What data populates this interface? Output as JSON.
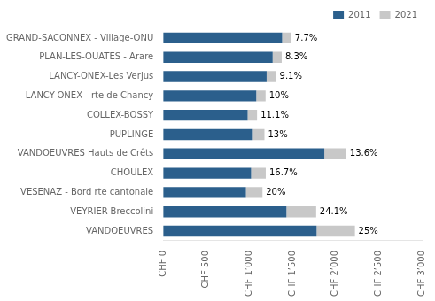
{
  "chart_data": {
    "type": "bar",
    "orientation": "horizontal",
    "stacked": true,
    "categories": [
      "GRAND-SACONNEX - Village-ONU",
      "PLAN-LES-OUATES - Arare",
      "LANCY-ONEX-Les Verjus",
      "LANCY-ONEX - rte de Chancy",
      "COLLEX-BOSSY",
      "PUPLINGE",
      "VANDOEUVRES Hauts de Crêts",
      "CHOULEX",
      "VESENAZ - Bord rte cantonale",
      "VEYRIER-Breccolini",
      "VANDOEUVRES"
    ],
    "series": [
      {
        "name": "2011",
        "color": "#2B5F8C",
        "values": [
          1380,
          1270,
          1200,
          1080,
          980,
          1040,
          1870,
          1020,
          960,
          1430,
          1780
        ]
      },
      {
        "name": "2021",
        "color": "#C8C8C8",
        "values": [
          107,
          105,
          109,
          108,
          109,
          135,
          254,
          170,
          192,
          345,
          445
        ]
      }
    ],
    "annotations": [
      {
        "category": "GRAND-SACONNEX - Village-ONU",
        "text": "7.7%"
      },
      {
        "category": "PLAN-LES-OUATES - Arare",
        "text": "8.3%"
      },
      {
        "category": "LANCY-ONEX-Les Verjus",
        "text": "9.1%"
      },
      {
        "category": "LANCY-ONEX - rte de Chancy",
        "text": "10%"
      },
      {
        "category": "COLLEX-BOSSY",
        "text": "11.1%"
      },
      {
        "category": "PUPLINGE",
        "text": "13%"
      },
      {
        "category": "VANDOEUVRES Hauts de Crêts",
        "text": "13.6%"
      },
      {
        "category": "CHOULEX",
        "text": "16.7%"
      },
      {
        "category": "VESENAZ - Bord rte cantonale",
        "text": "20%"
      },
      {
        "category": "VEYRIER-Breccolini",
        "text": "24.1%"
      },
      {
        "category": "VANDOEUVRES",
        "text": "25%"
      }
    ],
    "xlim": [
      0,
      3000
    ],
    "xticks": [
      {
        "value": 0,
        "label": "CHF 0"
      },
      {
        "value": 500,
        "label": "CHF 500"
      },
      {
        "value": 1000,
        "label": "CHF 1’000"
      },
      {
        "value": 1500,
        "label": "CHF 1’500"
      },
      {
        "value": 2000,
        "label": "CHF 2’000"
      },
      {
        "value": 2500,
        "label": "CHF 2’500"
      },
      {
        "value": 3000,
        "label": "CHF 3’000"
      }
    ],
    "grid": false,
    "legend": "upper right"
  }
}
